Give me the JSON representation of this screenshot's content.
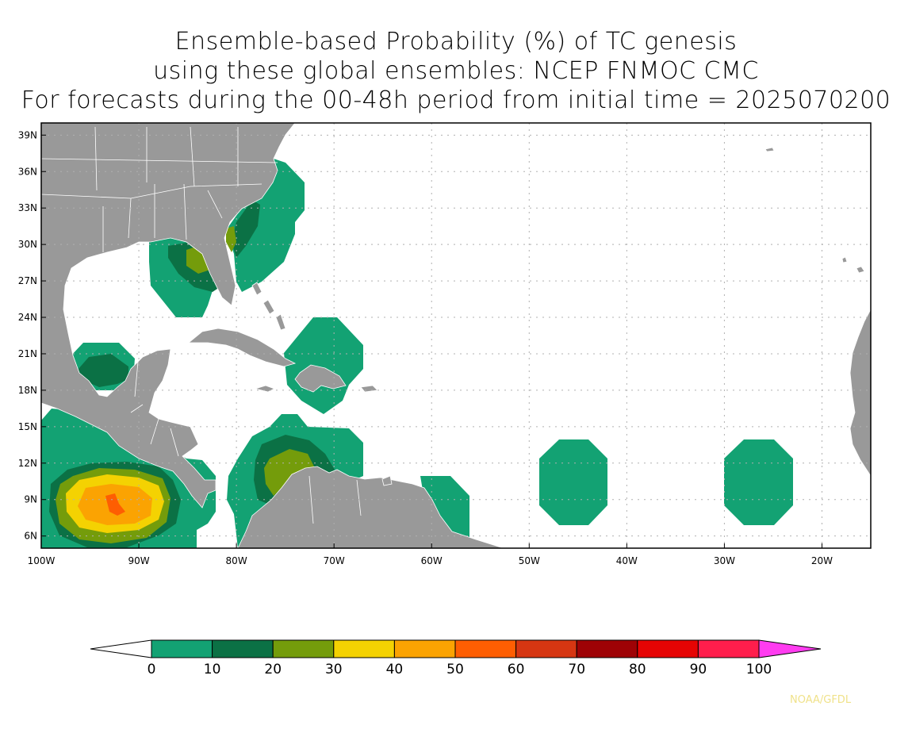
{
  "title": {
    "line1": "Ensemble-based Probability (%) of TC genesis",
    "line2": "using these global ensembles:   NCEP FNMOC CMC",
    "line3": "For forecasts during the 00-48h period from initial time = 2025070200"
  },
  "map": {
    "lon_range": [
      -100,
      -15
    ],
    "lat_range": [
      5,
      40
    ],
    "lat_ticks": [
      {
        "value": 39,
        "label": "39N"
      },
      {
        "value": 36,
        "label": "36N"
      },
      {
        "value": 33,
        "label": "33N"
      },
      {
        "value": 30,
        "label": "30N"
      },
      {
        "value": 27,
        "label": "27N"
      },
      {
        "value": 24,
        "label": "24N"
      },
      {
        "value": 21,
        "label": "21N"
      },
      {
        "value": 18,
        "label": "18N"
      },
      {
        "value": 15,
        "label": "15N"
      },
      {
        "value": 12,
        "label": "12N"
      },
      {
        "value": 9,
        "label": "9N"
      },
      {
        "value": 6,
        "label": "6N"
      }
    ],
    "lon_ticks": [
      {
        "value": -100,
        "label": "100W"
      },
      {
        "value": -90,
        "label": "90W"
      },
      {
        "value": -80,
        "label": "80W"
      },
      {
        "value": -70,
        "label": "70W"
      },
      {
        "value": -60,
        "label": "60W"
      },
      {
        "value": -50,
        "label": "50W"
      },
      {
        "value": -40,
        "label": "40W"
      },
      {
        "value": -30,
        "label": "30W"
      },
      {
        "value": -20,
        "label": "20W"
      }
    ]
  },
  "colorbar": {
    "levels": [
      "0",
      "10",
      "20",
      "30",
      "40",
      "50",
      "60",
      "70",
      "80",
      "90",
      "100"
    ],
    "colors": [
      "#13a273",
      "#0b7145",
      "#749c0b",
      "#f4d202",
      "#fba302",
      "#fe5e02",
      "#d63612",
      "#9e0205",
      "#e60404",
      "#ff1e4c"
    ],
    "under_color": "#ffffff",
    "over_color": "#ff3cf0"
  },
  "colors": {
    "land": "#999999",
    "coast": "#ffffff",
    "grid": "#b0b0b0"
  },
  "credit": "NOAA/GFDL"
}
